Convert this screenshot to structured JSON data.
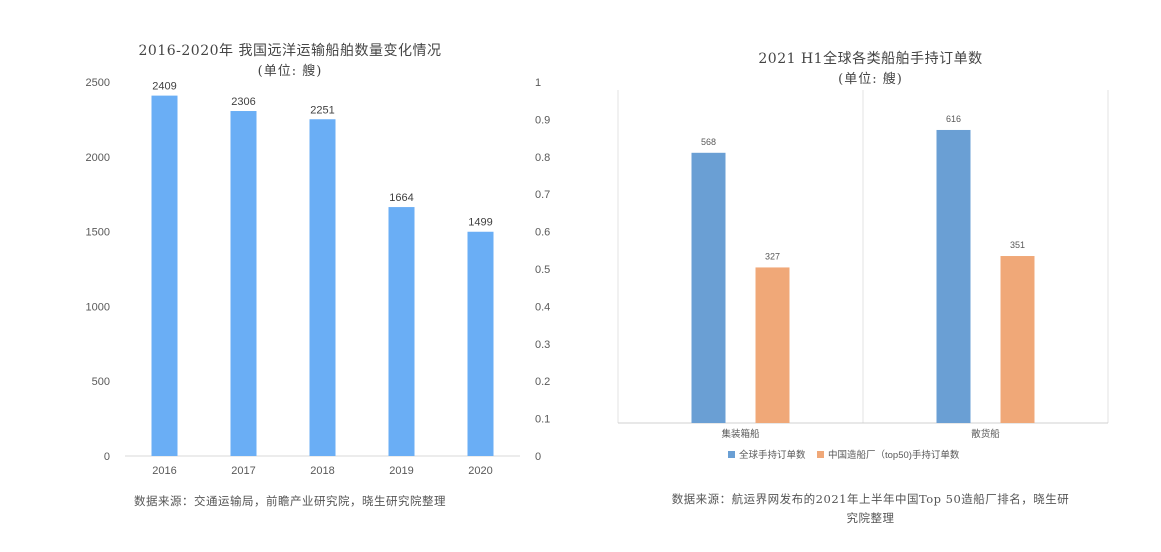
{
  "chart_data": [
    {
      "type": "bar",
      "title": "2016-2020年 我国远洋运输船舶数量变化情况",
      "subtitle": "(单位: 艘)",
      "categories": [
        "2016",
        "2017",
        "2018",
        "2019",
        "2020"
      ],
      "values": [
        2409,
        2306,
        2251,
        1664,
        1499
      ],
      "ylim": [
        0,
        2500
      ],
      "yticks": [
        "0",
        "500",
        "1000",
        "1500",
        "2000",
        "2500"
      ],
      "y2lim": [
        0,
        1
      ],
      "y2ticks": [
        "0",
        "0.1",
        "0.2",
        "0.3",
        "0.4",
        "0.5",
        "0.6",
        "0.7",
        "0.8",
        "0.9",
        "1"
      ],
      "color": "#6aaef5",
      "grid": false
    },
    {
      "type": "bar",
      "title": "2021 H1全球各类船舶手持订单数",
      "subtitle": "(单位: 艘)",
      "categories": [
        "集装箱船",
        "散货船"
      ],
      "series": [
        {
          "name": "全球手持订单数",
          "values": [
            568,
            616
          ],
          "color": "#6a9fd4"
        },
        {
          "name": "中国造船厂（top50)手持订单数",
          "values": [
            327,
            351
          ],
          "color": "#f0a878"
        }
      ],
      "ylim": [
        0,
        700
      ],
      "legend": "bottom",
      "grid": false
    }
  ],
  "sources": {
    "left": "数据来源：交通运输局，前瞻产业研究院，晓生研究院整理",
    "right_line1": "数据来源：航运界网发布的2021年上半年中国Top 50造船厂排名，晓生研",
    "right_line2": "究院整理"
  }
}
